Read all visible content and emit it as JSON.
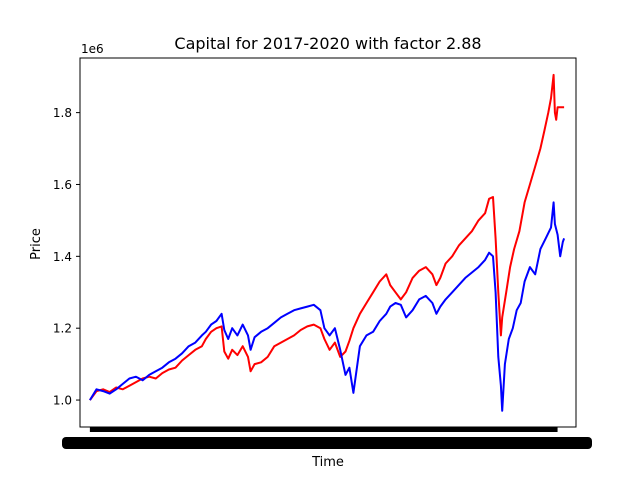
{
  "chart_data": {
    "type": "line",
    "title": "Capital for 2017-2020 with factor 2.88",
    "xlabel": "Time",
    "ylabel": "Price",
    "y_multiplier_label": "1e6",
    "ylim": [
      0.925,
      1.952
    ],
    "y_ticks": [
      "1.0",
      "1.2",
      "1.4",
      "1.6",
      "1.8"
    ],
    "y_tick_values": [
      1.0,
      1.2,
      1.4,
      1.6,
      1.8
    ],
    "x_range": [
      2017.0,
      2020.55
    ],
    "x_ticks_overlapping": true,
    "grid": false,
    "series": [
      {
        "color": "#ff0000",
        "points": [
          [
            2017.0,
            1.0
          ],
          [
            2017.05,
            1.025
          ],
          [
            2017.1,
            1.03
          ],
          [
            2017.15,
            1.022
          ],
          [
            2017.2,
            1.035
          ],
          [
            2017.25,
            1.03
          ],
          [
            2017.3,
            1.04
          ],
          [
            2017.35,
            1.05
          ],
          [
            2017.4,
            1.06
          ],
          [
            2017.45,
            1.065
          ],
          [
            2017.5,
            1.06
          ],
          [
            2017.55,
            1.075
          ],
          [
            2017.6,
            1.085
          ],
          [
            2017.65,
            1.09
          ],
          [
            2017.7,
            1.11
          ],
          [
            2017.75,
            1.125
          ],
          [
            2017.8,
            1.14
          ],
          [
            2017.85,
            1.15
          ],
          [
            2017.88,
            1.17
          ],
          [
            2017.92,
            1.19
          ],
          [
            2017.96,
            1.2
          ],
          [
            2018.0,
            1.205
          ],
          [
            2018.02,
            1.135
          ],
          [
            2018.05,
            1.115
          ],
          [
            2018.08,
            1.14
          ],
          [
            2018.12,
            1.125
          ],
          [
            2018.16,
            1.15
          ],
          [
            2018.2,
            1.12
          ],
          [
            2018.22,
            1.08
          ],
          [
            2018.25,
            1.1
          ],
          [
            2018.3,
            1.105
          ],
          [
            2018.35,
            1.12
          ],
          [
            2018.4,
            1.15
          ],
          [
            2018.45,
            1.16
          ],
          [
            2018.5,
            1.17
          ],
          [
            2018.55,
            1.18
          ],
          [
            2018.6,
            1.195
          ],
          [
            2018.65,
            1.205
          ],
          [
            2018.7,
            1.21
          ],
          [
            2018.75,
            1.2
          ],
          [
            2018.78,
            1.17
          ],
          [
            2018.82,
            1.14
          ],
          [
            2018.86,
            1.16
          ],
          [
            2018.9,
            1.12
          ],
          [
            2018.94,
            1.135
          ],
          [
            2018.97,
            1.165
          ],
          [
            2019.0,
            1.2
          ],
          [
            2019.05,
            1.24
          ],
          [
            2019.1,
            1.27
          ],
          [
            2019.15,
            1.3
          ],
          [
            2019.2,
            1.33
          ],
          [
            2019.25,
            1.35
          ],
          [
            2019.28,
            1.32
          ],
          [
            2019.32,
            1.3
          ],
          [
            2019.36,
            1.28
          ],
          [
            2019.4,
            1.3
          ],
          [
            2019.45,
            1.34
          ],
          [
            2019.5,
            1.36
          ],
          [
            2019.55,
            1.37
          ],
          [
            2019.6,
            1.35
          ],
          [
            2019.63,
            1.32
          ],
          [
            2019.66,
            1.34
          ],
          [
            2019.7,
            1.38
          ],
          [
            2019.75,
            1.4
          ],
          [
            2019.8,
            1.43
          ],
          [
            2019.85,
            1.45
          ],
          [
            2019.9,
            1.47
          ],
          [
            2019.95,
            1.5
          ],
          [
            2020.0,
            1.52
          ],
          [
            2020.03,
            1.56
          ],
          [
            2020.06,
            1.565
          ],
          [
            2020.08,
            1.45
          ],
          [
            2020.1,
            1.3
          ],
          [
            2020.12,
            1.18
          ],
          [
            2020.13,
            1.23
          ],
          [
            2020.16,
            1.3
          ],
          [
            2020.19,
            1.37
          ],
          [
            2020.22,
            1.42
          ],
          [
            2020.26,
            1.47
          ],
          [
            2020.3,
            1.55
          ],
          [
            2020.34,
            1.6
          ],
          [
            2020.38,
            1.65
          ],
          [
            2020.42,
            1.7
          ],
          [
            2020.45,
            1.75
          ],
          [
            2020.48,
            1.8
          ],
          [
            2020.5,
            1.84
          ],
          [
            2020.52,
            1.905
          ],
          [
            2020.53,
            1.8
          ],
          [
            2020.54,
            1.78
          ],
          [
            2020.55,
            1.815
          ],
          [
            2020.6,
            1.815
          ]
        ]
      },
      {
        "color": "#0000ff",
        "points": [
          [
            2017.0,
            1.0
          ],
          [
            2017.05,
            1.03
          ],
          [
            2017.1,
            1.025
          ],
          [
            2017.15,
            1.018
          ],
          [
            2017.2,
            1.03
          ],
          [
            2017.25,
            1.045
          ],
          [
            2017.3,
            1.06
          ],
          [
            2017.35,
            1.065
          ],
          [
            2017.4,
            1.055
          ],
          [
            2017.45,
            1.07
          ],
          [
            2017.5,
            1.08
          ],
          [
            2017.55,
            1.09
          ],
          [
            2017.6,
            1.105
          ],
          [
            2017.65,
            1.115
          ],
          [
            2017.7,
            1.13
          ],
          [
            2017.75,
            1.15
          ],
          [
            2017.8,
            1.16
          ],
          [
            2017.85,
            1.18
          ],
          [
            2017.88,
            1.19
          ],
          [
            2017.92,
            1.21
          ],
          [
            2017.96,
            1.22
          ],
          [
            2018.0,
            1.24
          ],
          [
            2018.02,
            1.195
          ],
          [
            2018.05,
            1.17
          ],
          [
            2018.08,
            1.2
          ],
          [
            2018.12,
            1.18
          ],
          [
            2018.16,
            1.21
          ],
          [
            2018.2,
            1.18
          ],
          [
            2018.22,
            1.14
          ],
          [
            2018.25,
            1.175
          ],
          [
            2018.3,
            1.19
          ],
          [
            2018.35,
            1.2
          ],
          [
            2018.4,
            1.215
          ],
          [
            2018.45,
            1.23
          ],
          [
            2018.5,
            1.24
          ],
          [
            2018.55,
            1.25
          ],
          [
            2018.6,
            1.255
          ],
          [
            2018.65,
            1.26
          ],
          [
            2018.7,
            1.265
          ],
          [
            2018.75,
            1.25
          ],
          [
            2018.78,
            1.2
          ],
          [
            2018.82,
            1.18
          ],
          [
            2018.86,
            1.2
          ],
          [
            2018.9,
            1.14
          ],
          [
            2018.94,
            1.07
          ],
          [
            2018.97,
            1.09
          ],
          [
            2019.0,
            1.02
          ],
          [
            2019.05,
            1.15
          ],
          [
            2019.1,
            1.18
          ],
          [
            2019.15,
            1.19
          ],
          [
            2019.2,
            1.22
          ],
          [
            2019.25,
            1.24
          ],
          [
            2019.28,
            1.26
          ],
          [
            2019.32,
            1.27
          ],
          [
            2019.36,
            1.265
          ],
          [
            2019.4,
            1.23
          ],
          [
            2019.45,
            1.25
          ],
          [
            2019.5,
            1.28
          ],
          [
            2019.55,
            1.29
          ],
          [
            2019.6,
            1.27
          ],
          [
            2019.63,
            1.24
          ],
          [
            2019.66,
            1.26
          ],
          [
            2019.7,
            1.28
          ],
          [
            2019.75,
            1.3
          ],
          [
            2019.8,
            1.32
          ],
          [
            2019.85,
            1.34
          ],
          [
            2019.9,
            1.355
          ],
          [
            2019.95,
            1.37
          ],
          [
            2020.0,
            1.39
          ],
          [
            2020.03,
            1.41
          ],
          [
            2020.06,
            1.4
          ],
          [
            2020.08,
            1.3
          ],
          [
            2020.1,
            1.12
          ],
          [
            2020.12,
            1.04
          ],
          [
            2020.13,
            0.97
          ],
          [
            2020.15,
            1.1
          ],
          [
            2020.18,
            1.17
          ],
          [
            2020.21,
            1.2
          ],
          [
            2020.24,
            1.25
          ],
          [
            2020.27,
            1.27
          ],
          [
            2020.3,
            1.33
          ],
          [
            2020.34,
            1.37
          ],
          [
            2020.38,
            1.35
          ],
          [
            2020.42,
            1.42
          ],
          [
            2020.46,
            1.45
          ],
          [
            2020.5,
            1.48
          ],
          [
            2020.52,
            1.55
          ],
          [
            2020.53,
            1.49
          ],
          [
            2020.55,
            1.46
          ],
          [
            2020.57,
            1.4
          ],
          [
            2020.59,
            1.44
          ],
          [
            2020.6,
            1.45
          ]
        ]
      }
    ]
  }
}
